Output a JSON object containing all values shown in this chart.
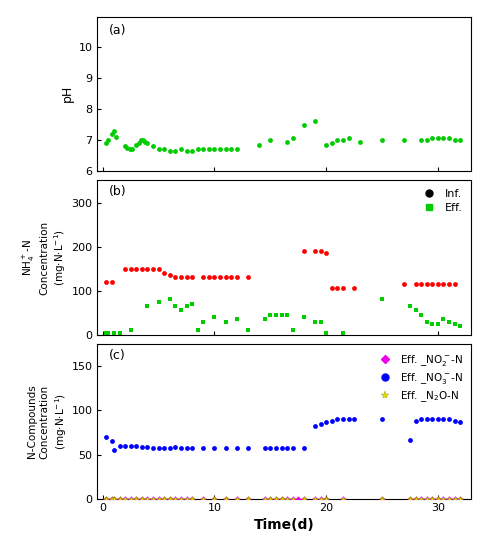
{
  "panel_a_label": "(a)",
  "panel_b_label": "(b)",
  "panel_c_label": "(c)",
  "xlabel": "Time(d)",
  "ph_data": {
    "x": [
      0.3,
      0.5,
      0.8,
      1.0,
      1.2,
      2.0,
      2.2,
      2.4,
      2.6,
      3.0,
      3.2,
      3.4,
      3.6,
      3.8,
      4.0,
      4.5,
      5.0,
      5.5,
      6.0,
      6.5,
      7.0,
      7.5,
      8.0,
      8.5,
      9.0,
      9.5,
      10.0,
      10.5,
      11.0,
      11.5,
      12.0,
      14.0,
      15.0,
      16.5,
      17.0,
      18.0,
      19.0,
      20.0,
      20.5,
      21.0,
      21.5,
      22.0,
      23.0,
      25.0,
      27.0,
      28.5,
      29.0,
      29.5,
      30.0,
      30.5,
      31.0,
      31.5,
      32.0
    ],
    "y": [
      6.9,
      7.0,
      7.2,
      7.3,
      7.1,
      6.8,
      6.75,
      6.7,
      6.7,
      6.85,
      6.9,
      7.0,
      7.0,
      6.95,
      6.9,
      6.8,
      6.7,
      6.7,
      6.65,
      6.65,
      6.7,
      6.65,
      6.65,
      6.7,
      6.7,
      6.7,
      6.7,
      6.7,
      6.7,
      6.7,
      6.7,
      6.85,
      7.0,
      6.95,
      7.05,
      7.5,
      7.6,
      6.85,
      6.9,
      7.0,
      7.0,
      7.05,
      6.95,
      7.0,
      7.0,
      7.0,
      7.0,
      7.05,
      7.05,
      7.05,
      7.05,
      7.0,
      7.0
    ],
    "color": "#00cc00",
    "marker": "o",
    "size": 12
  },
  "nh4_inf_data": {
    "x": [
      0.3,
      0.8,
      2.0,
      2.5,
      3.0,
      3.5,
      4.0,
      4.5,
      5.0,
      5.5,
      6.0,
      6.5,
      7.0,
      7.5,
      8.0,
      9.0,
      9.5,
      10.0,
      10.5,
      11.0,
      11.5,
      12.0,
      13.0,
      18.0,
      19.0,
      19.5,
      20.0,
      20.5,
      21.0,
      21.5,
      22.5,
      27.0,
      28.0,
      28.5,
      29.0,
      29.5,
      30.0,
      30.5,
      31.0,
      31.5
    ],
    "y": [
      120,
      120,
      150,
      150,
      150,
      150,
      150,
      150,
      150,
      140,
      135,
      130,
      130,
      130,
      130,
      130,
      130,
      130,
      130,
      130,
      130,
      130,
      130,
      190,
      190,
      190,
      185,
      105,
      105,
      105,
      105,
      115,
      115,
      115,
      115,
      115,
      115,
      115,
      115,
      115
    ],
    "color": "#ff0000",
    "marker": "o",
    "size": 12
  },
  "nh4_eff_data": {
    "x": [
      0.3,
      0.5,
      1.0,
      1.5,
      2.5,
      4.0,
      5.0,
      6.0,
      6.5,
      7.0,
      7.5,
      8.0,
      8.5,
      9.0,
      10.0,
      11.0,
      12.0,
      13.0,
      14.5,
      15.0,
      15.5,
      16.0,
      16.5,
      17.0,
      18.0,
      19.0,
      19.5,
      20.0,
      21.5,
      25.0,
      27.5,
      28.0,
      28.5,
      29.0,
      29.5,
      30.0,
      30.5,
      31.0,
      31.5,
      32.0
    ],
    "y": [
      5,
      5,
      5,
      5,
      10,
      65,
      75,
      80,
      65,
      55,
      65,
      70,
      10,
      30,
      40,
      30,
      35,
      10,
      35,
      45,
      45,
      45,
      45,
      10,
      40,
      30,
      30,
      5,
      5,
      80,
      65,
      55,
      45,
      30,
      25,
      25,
      35,
      30,
      25,
      20
    ],
    "color": "#00cc00",
    "marker": "s",
    "size": 12
  },
  "no2_data": {
    "x": [
      0.3,
      0.8,
      1.0,
      1.5,
      2.0,
      2.5,
      3.0,
      3.5,
      4.0,
      4.5,
      5.0,
      5.5,
      6.0,
      6.5,
      7.0,
      7.5,
      8.0,
      9.0,
      10.0,
      11.0,
      12.0,
      13.0,
      14.5,
      15.0,
      15.5,
      16.0,
      16.5,
      17.0,
      17.5,
      18.0,
      19.0,
      19.5,
      20.0,
      21.5,
      25.0,
      27.5,
      28.0,
      28.5,
      29.0,
      29.5,
      30.0,
      30.5,
      31.0,
      31.5,
      32.0
    ],
    "y": [
      0,
      0,
      0,
      0,
      0,
      0,
      0,
      0,
      0,
      0,
      0,
      0,
      0,
      0,
      0,
      0,
      0,
      0,
      0,
      0,
      0,
      0,
      0,
      0,
      0,
      0,
      0,
      0,
      0,
      0,
      0,
      0,
      0,
      0,
      0,
      0,
      0,
      0,
      0,
      0,
      0,
      0,
      0,
      0,
      0
    ],
    "color": "#ee00ee",
    "marker": "D",
    "size": 10
  },
  "no3_data": {
    "x": [
      0.3,
      0.8,
      1.0,
      1.5,
      2.0,
      2.5,
      3.0,
      3.5,
      4.0,
      4.5,
      5.0,
      5.5,
      6.0,
      6.5,
      7.0,
      7.5,
      8.0,
      9.0,
      10.0,
      11.0,
      12.0,
      13.0,
      14.5,
      15.0,
      15.5,
      16.0,
      16.5,
      17.0,
      18.0,
      19.0,
      19.5,
      20.0,
      20.5,
      21.0,
      21.5,
      22.0,
      22.5,
      25.0,
      27.5,
      28.0,
      28.5,
      29.0,
      29.5,
      30.0,
      30.5,
      31.0,
      31.5,
      32.0
    ],
    "y": [
      70,
      65,
      55,
      60,
      60,
      60,
      60,
      58,
      58,
      57,
      57,
      57,
      57,
      58,
      57,
      57,
      57,
      57,
      57,
      57,
      57,
      57,
      57,
      57,
      57,
      57,
      57,
      57,
      57,
      82,
      85,
      87,
      88,
      90,
      90,
      90,
      90,
      90,
      67,
      88,
      90,
      90,
      90,
      90,
      90,
      90,
      88,
      87
    ],
    "color": "#0000ff",
    "marker": "o",
    "size": 12
  },
  "n2o_data": {
    "x": [
      0.3,
      0.8,
      1.0,
      1.5,
      2.0,
      2.5,
      3.0,
      3.5,
      4.0,
      4.5,
      5.0,
      5.5,
      6.0,
      6.5,
      7.0,
      7.5,
      8.0,
      9.0,
      10.0,
      11.0,
      12.0,
      13.0,
      14.5,
      15.0,
      15.5,
      16.0,
      16.5,
      17.0,
      18.0,
      19.0,
      19.5,
      20.0,
      21.5,
      25.0,
      27.5,
      28.0,
      28.5,
      29.0,
      29.5,
      30.0,
      30.5,
      31.0,
      31.5,
      32.0
    ],
    "y": [
      0,
      0,
      0,
      0,
      0,
      0,
      0,
      0,
      0,
      0,
      0,
      0,
      0,
      0,
      0,
      0,
      0,
      0,
      0,
      0,
      0,
      0,
      0,
      0,
      0,
      0,
      0,
      0,
      0,
      0,
      0,
      0,
      0,
      0,
      0,
      0,
      0,
      0,
      0,
      0,
      0,
      0,
      0,
      0
    ],
    "color": "#dddd00",
    "marker": "*",
    "size": 18
  },
  "ylim_a": [
    6,
    11
  ],
  "ylim_b": [
    0,
    350
  ],
  "ylim_c": [
    0,
    175
  ],
  "xlim": [
    -0.5,
    33
  ],
  "yticks_a": [
    6,
    7,
    8,
    9,
    10
  ],
  "yticks_b": [
    0,
    100,
    200,
    300
  ],
  "yticks_c": [
    0,
    50,
    100,
    150
  ],
  "xticks": [
    0,
    10,
    20,
    30
  ]
}
